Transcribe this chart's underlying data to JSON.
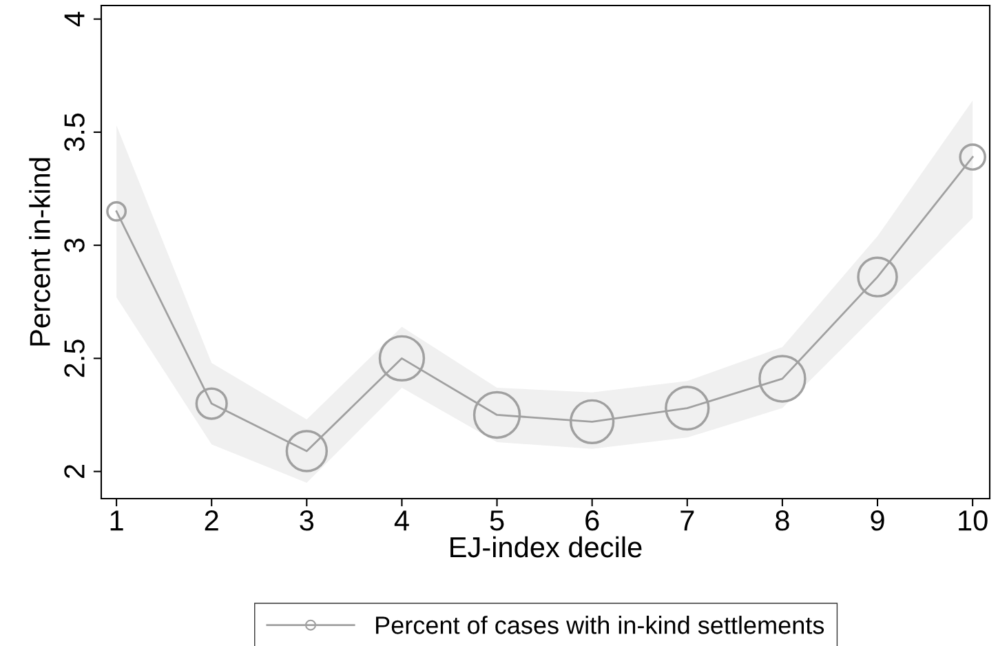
{
  "chart_data": {
    "type": "line",
    "xlabel": "EJ-index decile",
    "ylabel": "Percent in-kind",
    "x": [
      1,
      2,
      3,
      4,
      5,
      6,
      7,
      8,
      9,
      10
    ],
    "series": [
      {
        "name": "Percent of cases with in-kind settlements",
        "type": "bubble",
        "color": "#a0a0a0",
        "values": [
          3.15,
          2.3,
          2.09,
          2.5,
          2.25,
          2.22,
          2.28,
          2.41,
          2.86,
          3.39
        ],
        "sizes": [
          0.16,
          0.44,
          0.77,
          0.94,
          1.0,
          0.88,
          0.88,
          1.0,
          0.72,
          0.3
        ],
        "lower": [
          2.77,
          2.12,
          1.95,
          2.37,
          2.13,
          2.1,
          2.15,
          2.28,
          2.7,
          3.12
        ],
        "upper": [
          3.53,
          2.48,
          2.23,
          2.64,
          2.37,
          2.35,
          2.4,
          2.55,
          3.04,
          3.64
        ]
      },
      {
        "color": "#a0a0a0",
        "marker": "none",
        "line_style": "solid",
        "values": [
          3.15,
          2.3,
          2.09,
          2.5,
          2.25,
          2.22,
          2.28,
          2.41,
          2.86,
          3.39
        ]
      }
    ],
    "xlim": [
      0.84,
      10.18
    ],
    "ylim": [
      1.88,
      4.06
    ],
    "xticks": [
      1,
      2,
      3,
      4,
      5,
      6,
      7,
      8,
      9,
      10
    ],
    "yticks": [
      2,
      2.5,
      3,
      3.5,
      4
    ],
    "grid": false,
    "legend": "bottom"
  }
}
